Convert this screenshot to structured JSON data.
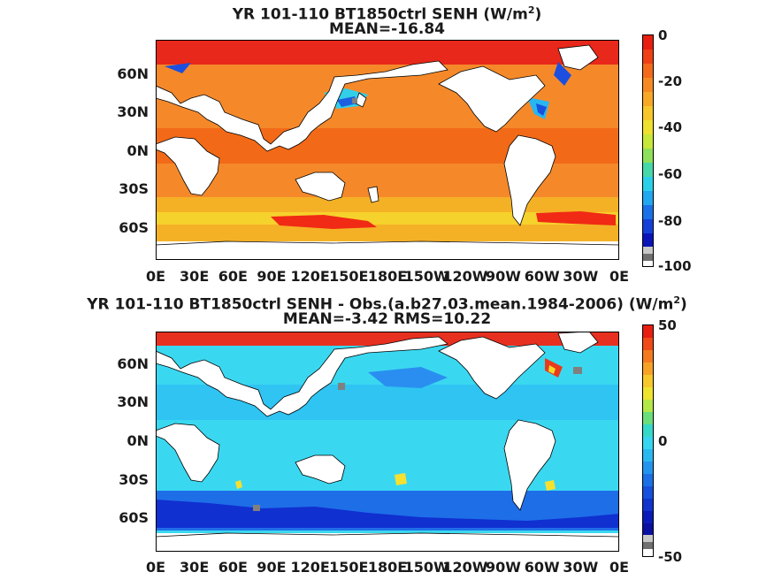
{
  "panels": [
    {
      "title_prefix": "YR 101-110 BT1850ctrl  SENH (W/m",
      "title_sup": "2",
      "title_suffix": ")",
      "subtitle": "MEAN=-16.84",
      "colorbar_ticks": [
        "0",
        "-20",
        "-40",
        "-60",
        "-80",
        "-100"
      ],
      "colors": {
        "ocean": "#f07a1e",
        "arctic": "#e81e10",
        "land": "#ffffff"
      }
    },
    {
      "title_prefix": "YR 101-110 BT1850ctrl SENH - Obs.(a.b27.03.mean.1984-2006) (W/m",
      "title_sup": "2",
      "title_suffix": ")",
      "subtitle": "MEAN=-3.42 RMS=10.22",
      "colorbar_ticks": [
        "50",
        "0",
        "-50"
      ],
      "colors": {
        "ocean": "#33d6f0",
        "southern": "#1437e0",
        "land": "#ffffff"
      }
    }
  ],
  "lat_labels": [
    "60N",
    "30N",
    "0N",
    "30S",
    "60S"
  ],
  "lon_labels": [
    "0E",
    "30E",
    "60E",
    "90E",
    "120E",
    "150E",
    "180E",
    "150W",
    "120W",
    "90W",
    "60W",
    "30W",
    "0E"
  ]
}
